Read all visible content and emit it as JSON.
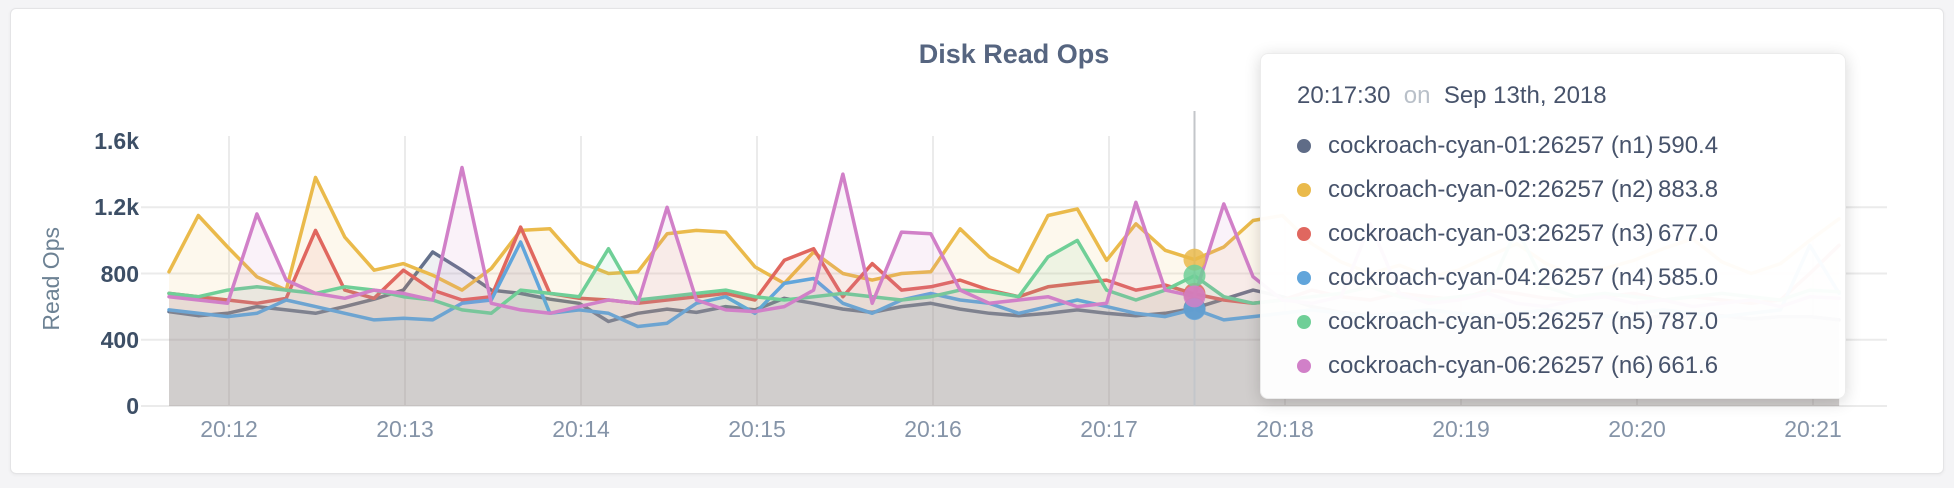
{
  "page": {
    "background": "#f4f4f6",
    "card_background": "#ffffff"
  },
  "chart": {
    "title": "Disk Read Ops",
    "ylabel": "Read Ops",
    "grid_color": "#ebebeb",
    "hover_line_color": "#c3c6ca",
    "y_ticks": [
      {
        "label": "1.6k",
        "value": 1600
      },
      {
        "label": "1.2k",
        "value": 1200
      },
      {
        "label": "800",
        "value": 800
      },
      {
        "label": "400",
        "value": 400
      },
      {
        "label": "0",
        "value": 0
      }
    ],
    "x_ticks": [
      "20:12",
      "20:13",
      "20:14",
      "20:15",
      "20:16",
      "20:17",
      "20:18",
      "20:19",
      "20:20",
      "20:21"
    ]
  },
  "chart_data": {
    "type": "area",
    "title": "Disk Read Ops",
    "ylabel": "Read Ops",
    "ylim": [
      0,
      1600
    ],
    "grid": true,
    "x_start": "20:11:40",
    "x_interval_seconds": 10,
    "x_tick_labels": [
      "20:12",
      "20:13",
      "20:14",
      "20:15",
      "20:16",
      "20:17",
      "20:18",
      "20:19",
      "20:20",
      "20:21"
    ],
    "series": [
      {
        "name": "cockroach-cyan-01:26257 (n1)",
        "color": "#64718c",
        "values": [
          570,
          545,
          560,
          600,
          580,
          560,
          600,
          645,
          700,
          930,
          820,
          700,
          680,
          645,
          620,
          510,
          560,
          585,
          565,
          600,
          580,
          650,
          620,
          585,
          565,
          600,
          620,
          585,
          560,
          545,
          560,
          580,
          560,
          545,
          560,
          590.4,
          645,
          700,
          660,
          600,
          565,
          545,
          560,
          580,
          560,
          545,
          525,
          545,
          560,
          545,
          525,
          545,
          560,
          545,
          525,
          540,
          540,
          520
        ]
      },
      {
        "name": "cockroach-cyan-02:26257 (n2)",
        "color": "#eaba4b",
        "values": [
          810,
          1150,
          960,
          780,
          700,
          1380,
          1020,
          820,
          860,
          790,
          700,
          830,
          1060,
          1070,
          870,
          800,
          810,
          1040,
          1060,
          1050,
          840,
          740,
          930,
          800,
          760,
          800,
          810,
          1070,
          900,
          810,
          1150,
          1190,
          880,
          1100,
          940,
          883.8,
          960,
          1120,
          1150,
          980,
          870,
          800,
          850,
          780,
          820,
          900,
          980,
          860,
          790,
          830,
          880,
          950,
          1010,
          870,
          800,
          860,
          1000,
          1130
        ]
      },
      {
        "name": "cockroach-cyan-03:26257 (n3)",
        "color": "#e0675f",
        "values": [
          680,
          660,
          640,
          620,
          650,
          1060,
          700,
          650,
          820,
          700,
          640,
          660,
          1080,
          680,
          650,
          640,
          620,
          640,
          660,
          680,
          640,
          880,
          950,
          660,
          860,
          700,
          720,
          760,
          700,
          660,
          720,
          740,
          760,
          700,
          730,
          677,
          640,
          620,
          640,
          700,
          660,
          640,
          680,
          660,
          640,
          700,
          680,
          650,
          640,
          660,
          680,
          640,
          660,
          640,
          620,
          640,
          800,
          970
        ]
      },
      {
        "name": "cockroach-cyan-04:26257 (n4)",
        "color": "#61a5db",
        "values": [
          580,
          560,
          540,
          560,
          640,
          600,
          560,
          520,
          530,
          520,
          620,
          640,
          990,
          560,
          580,
          560,
          480,
          500,
          620,
          660,
          560,
          740,
          770,
          620,
          560,
          640,
          680,
          640,
          620,
          560,
          600,
          640,
          600,
          560,
          540,
          585,
          520,
          540,
          560,
          580,
          560,
          540,
          560,
          580,
          560,
          540,
          560,
          580,
          560,
          540,
          560,
          580,
          560,
          540,
          560,
          580,
          970,
          680
        ]
      },
      {
        "name": "cockroach-cyan-05:26257 (n5)",
        "color": "#6fcf97",
        "values": [
          680,
          660,
          700,
          720,
          700,
          680,
          720,
          700,
          660,
          640,
          580,
          560,
          700,
          680,
          660,
          950,
          640,
          660,
          680,
          700,
          660,
          640,
          660,
          680,
          660,
          640,
          660,
          700,
          690,
          660,
          900,
          1000,
          700,
          640,
          700,
          787,
          660,
          620,
          640,
          660,
          680,
          720,
          660,
          640,
          660,
          680,
          1070,
          720,
          660,
          680,
          660,
          640,
          660,
          680,
          660,
          640,
          700,
          690
        ]
      },
      {
        "name": "cockroach-cyan-06:26257 (n6)",
        "color": "#d180c8",
        "values": [
          660,
          640,
          620,
          1160,
          760,
          680,
          650,
          700,
          680,
          640,
          1440,
          620,
          580,
          560,
          600,
          640,
          620,
          1200,
          640,
          580,
          570,
          600,
          700,
          1400,
          620,
          1050,
          1040,
          700,
          620,
          640,
          660,
          600,
          620,
          1230,
          700,
          661.6,
          1220,
          780,
          640,
          620,
          660,
          1100,
          680,
          620,
          640,
          680,
          620,
          600,
          640,
          660,
          620,
          640,
          600,
          620,
          640,
          600,
          660,
          650
        ]
      }
    ]
  },
  "tooltip": {
    "time": "20:17:30",
    "conjunction": "on",
    "date": "Sep 13th, 2018",
    "hover_index": 35,
    "rows": [
      {
        "name": "cockroach-cyan-01:26257 (n1)",
        "value": "590.4",
        "color": "#5f6c87"
      },
      {
        "name": "cockroach-cyan-02:26257 (n2)",
        "value": "883.8",
        "color": "#eaba4b"
      },
      {
        "name": "cockroach-cyan-03:26257 (n3)",
        "value": "677.0",
        "color": "#e0675f"
      },
      {
        "name": "cockroach-cyan-04:26257 (n4)",
        "value": "585.0",
        "color": "#61a5db"
      },
      {
        "name": "cockroach-cyan-05:26257 (n5)",
        "value": "787.0",
        "color": "#6fcf97"
      },
      {
        "name": "cockroach-cyan-06:26257 (n6)",
        "value": "661.6",
        "color": "#d180c8"
      }
    ]
  }
}
